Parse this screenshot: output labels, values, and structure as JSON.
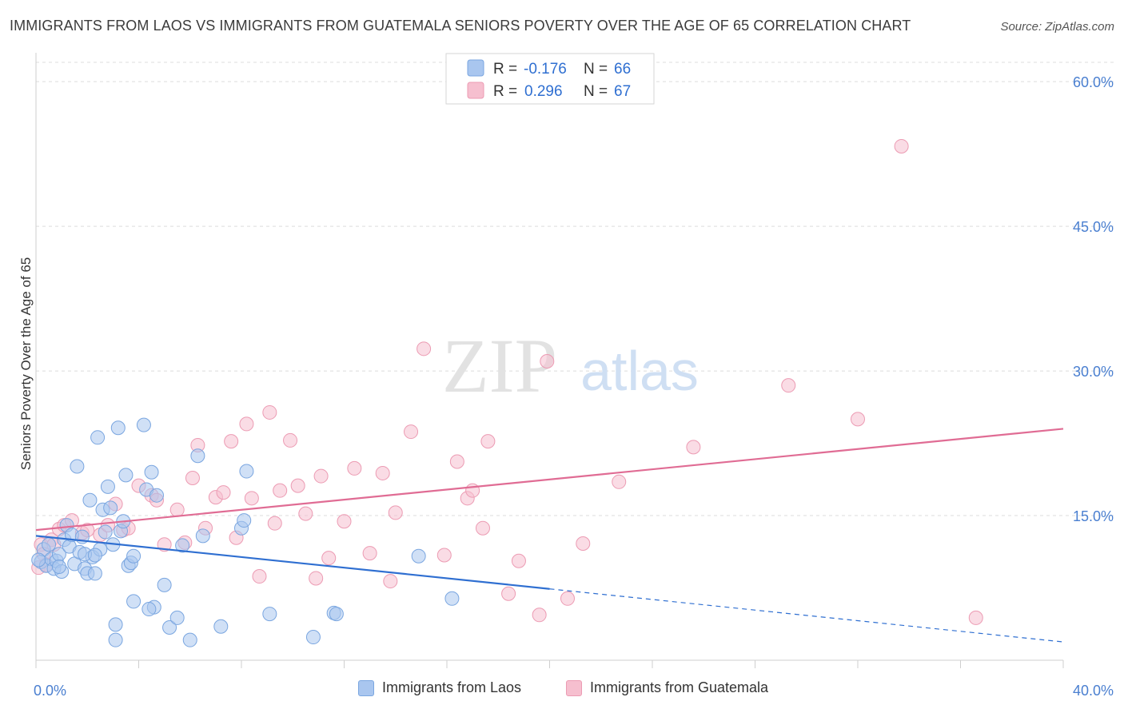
{
  "title": "IMMIGRANTS FROM LAOS VS IMMIGRANTS FROM GUATEMALA SENIORS POVERTY OVER THE AGE OF 65 CORRELATION CHART",
  "source": "Source: ZipAtlas.com",
  "watermark": {
    "zip": "ZIP",
    "atlas": "atlas"
  },
  "colors": {
    "laos_fill": "#a9c6ef",
    "laos_stroke": "#7aa6e0",
    "laos_line": "#2f6fd1",
    "guat_fill": "#f6bfcf",
    "guat_stroke": "#ec9bb3",
    "guat_line": "#e06c94",
    "tick_label": "#4a7fd0",
    "grid": "#dcdcdc"
  },
  "legend": {
    "laos": {
      "r_label": "R =",
      "r_value": "-0.176",
      "n_label": "N =",
      "n_value": "66"
    },
    "guatemala": {
      "r_label": "R =",
      "r_value": "0.296",
      "n_label": "N =",
      "n_value": "67"
    }
  },
  "chart_data": {
    "type": "scatter",
    "ylabel": "Seniors Poverty Over the Age of 65",
    "xlim": [
      0,
      40
    ],
    "ylim": [
      0,
      62
    ],
    "x_tick_labels": [
      {
        "value": 0,
        "label": "0.0%"
      },
      {
        "value": 40,
        "label": "40.0%"
      }
    ],
    "y_tick_labels": [
      {
        "value": 15,
        "label": "15.0%"
      },
      {
        "value": 30,
        "label": "30.0%"
      },
      {
        "value": 45,
        "label": "45.0%"
      },
      {
        "value": 60,
        "label": "60.0%"
      }
    ],
    "grid": true,
    "legend_position": "top-center",
    "series": [
      {
        "name": "Immigrants from Laos",
        "trend": {
          "x0": 0,
          "y0": 12.9,
          "x1": 20,
          "y1": 7.4,
          "dashed_to_x": 40,
          "dashed_to_y": 1.9
        },
        "points": [
          [
            0.2,
            10.2
          ],
          [
            0.3,
            11.5
          ],
          [
            0.4,
            9.8
          ],
          [
            0.5,
            12.0
          ],
          [
            0.6,
            10.5
          ],
          [
            0.7,
            9.5
          ],
          [
            0.8,
            10.3
          ],
          [
            0.9,
            11.0
          ],
          [
            1.0,
            9.2
          ],
          [
            1.1,
            12.5
          ],
          [
            1.2,
            14.0
          ],
          [
            1.3,
            11.8
          ],
          [
            1.4,
            13.0
          ],
          [
            1.5,
            10.0
          ],
          [
            1.6,
            20.1
          ],
          [
            1.7,
            11.2
          ],
          [
            1.8,
            12.8
          ],
          [
            1.9,
            9.5
          ],
          [
            2.0,
            9.0
          ],
          [
            2.1,
            16.6
          ],
          [
            2.2,
            10.7
          ],
          [
            2.3,
            9.0
          ],
          [
            2.4,
            23.1
          ],
          [
            2.5,
            11.5
          ],
          [
            2.6,
            15.6
          ],
          [
            2.7,
            13.3
          ],
          [
            2.8,
            18.0
          ],
          [
            2.9,
            15.8
          ],
          [
            3.0,
            12.0
          ],
          [
            3.1,
            3.7
          ],
          [
            3.2,
            24.1
          ],
          [
            3.3,
            13.4
          ],
          [
            3.4,
            14.4
          ],
          [
            3.5,
            19.2
          ],
          [
            3.6,
            9.8
          ],
          [
            3.7,
            10.1
          ],
          [
            3.8,
            10.8
          ],
          [
            4.2,
            24.4
          ],
          [
            4.3,
            17.7
          ],
          [
            4.5,
            19.5
          ],
          [
            4.7,
            17.1
          ],
          [
            5.0,
            7.8
          ],
          [
            5.2,
            3.4
          ],
          [
            5.5,
            4.4
          ],
          [
            5.7,
            11.9
          ],
          [
            6.0,
            2.1
          ],
          [
            6.5,
            12.9
          ],
          [
            6.3,
            21.2
          ],
          [
            7.2,
            3.5
          ],
          [
            8.0,
            13.7
          ],
          [
            8.1,
            14.5
          ],
          [
            8.2,
            19.6
          ],
          [
            9.1,
            4.8
          ],
          [
            10.8,
            2.4
          ],
          [
            11.6,
            4.9
          ],
          [
            11.7,
            4.8
          ],
          [
            14.9,
            10.8
          ],
          [
            16.2,
            6.4
          ],
          [
            3.8,
            6.1
          ],
          [
            3.1,
            2.1
          ],
          [
            4.6,
            5.5
          ],
          [
            0.1,
            10.4
          ],
          [
            0.9,
            9.7
          ],
          [
            1.9,
            11.0
          ],
          [
            4.4,
            5.3
          ],
          [
            2.3,
            10.9
          ]
        ]
      },
      {
        "name": "Immigrants from Guatemala",
        "trend": {
          "x0": 0,
          "y0": 13.5,
          "x1": 40,
          "y1": 24.0
        },
        "points": [
          [
            0.1,
            9.6
          ],
          [
            0.2,
            12.0
          ],
          [
            0.3,
            11.0
          ],
          [
            0.4,
            9.9
          ],
          [
            0.6,
            12.5
          ],
          [
            0.7,
            12.0
          ],
          [
            0.9,
            13.6
          ],
          [
            1.1,
            14.0
          ],
          [
            1.4,
            14.5
          ],
          [
            1.8,
            13.2
          ],
          [
            2.0,
            13.5
          ],
          [
            2.5,
            13.0
          ],
          [
            2.8,
            14.0
          ],
          [
            3.1,
            16.2
          ],
          [
            3.4,
            13.5
          ],
          [
            3.6,
            13.7
          ],
          [
            4.0,
            18.1
          ],
          [
            4.5,
            17.1
          ],
          [
            4.7,
            16.6
          ],
          [
            5.0,
            12.0
          ],
          [
            5.5,
            15.6
          ],
          [
            5.8,
            12.2
          ],
          [
            6.1,
            18.9
          ],
          [
            6.3,
            22.3
          ],
          [
            6.6,
            13.7
          ],
          [
            7.0,
            16.9
          ],
          [
            7.3,
            17.4
          ],
          [
            7.6,
            22.7
          ],
          [
            7.8,
            12.7
          ],
          [
            8.2,
            24.5
          ],
          [
            8.4,
            16.8
          ],
          [
            8.7,
            8.7
          ],
          [
            9.1,
            25.7
          ],
          [
            9.3,
            14.2
          ],
          [
            9.5,
            17.6
          ],
          [
            9.9,
            22.8
          ],
          [
            10.2,
            18.1
          ],
          [
            10.5,
            15.2
          ],
          [
            10.9,
            8.5
          ],
          [
            11.1,
            19.1
          ],
          [
            11.4,
            10.6
          ],
          [
            12.0,
            14.4
          ],
          [
            12.4,
            19.9
          ],
          [
            13.0,
            11.1
          ],
          [
            13.5,
            19.4
          ],
          [
            13.8,
            8.2
          ],
          [
            14.0,
            15.3
          ],
          [
            14.6,
            23.7
          ],
          [
            15.1,
            32.3
          ],
          [
            15.9,
            10.9
          ],
          [
            16.4,
            20.6
          ],
          [
            16.8,
            16.8
          ],
          [
            17.0,
            17.6
          ],
          [
            17.6,
            22.7
          ],
          [
            17.4,
            13.7
          ],
          [
            18.4,
            6.9
          ],
          [
            18.8,
            10.3
          ],
          [
            19.6,
            4.7
          ],
          [
            19.9,
            31.0
          ],
          [
            20.7,
            6.4
          ],
          [
            21.3,
            12.1
          ],
          [
            22.7,
            18.5
          ],
          [
            25.6,
            22.1
          ],
          [
            29.3,
            28.5
          ],
          [
            32.0,
            25.0
          ],
          [
            33.7,
            53.3
          ],
          [
            36.6,
            4.4
          ]
        ]
      }
    ]
  },
  "bottom_legend": {
    "laos": "Immigrants from Laos",
    "guatemala": "Immigrants from Guatemala"
  }
}
